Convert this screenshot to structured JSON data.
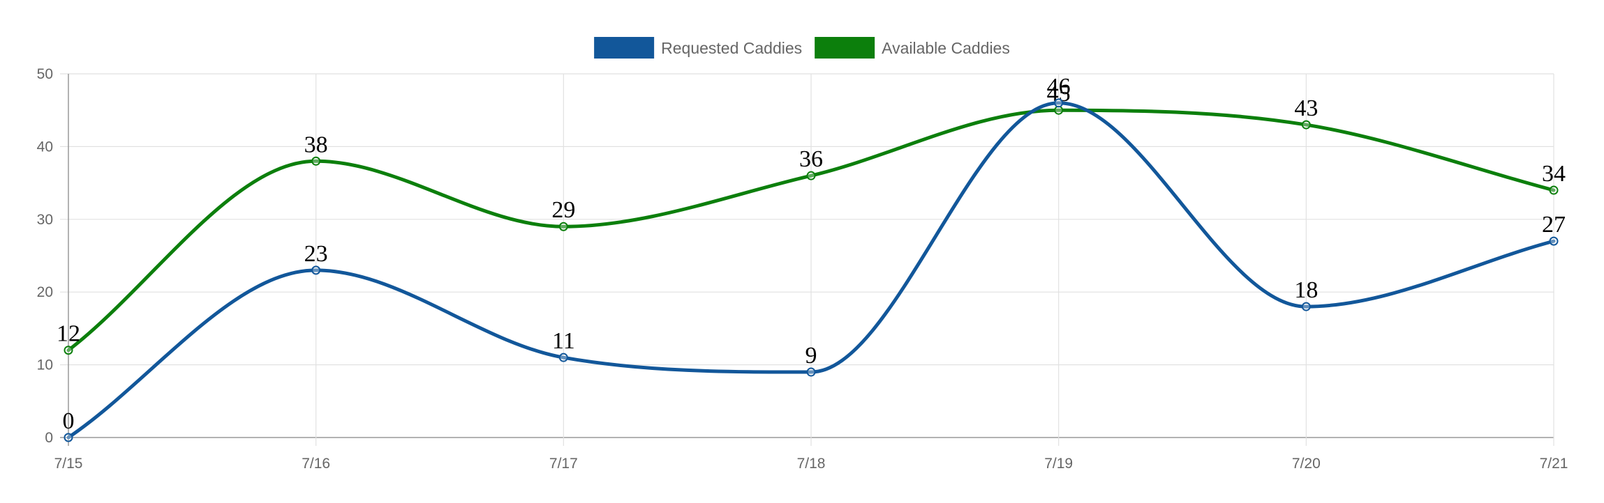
{
  "chart_data": {
    "type": "line",
    "categories": [
      "7/15",
      "7/16",
      "7/17",
      "7/18",
      "7/19",
      "7/20",
      "7/21"
    ],
    "series": [
      {
        "name": "Requested Caddies",
        "values": [
          0,
          23,
          11,
          9,
          46,
          18,
          27
        ],
        "color": "#12579a"
      },
      {
        "name": "Available Caddies",
        "values": [
          12,
          38,
          29,
          36,
          45,
          43,
          34
        ],
        "color": "#0c7f0c"
      }
    ],
    "ylim": [
      0,
      50
    ],
    "yticks": [
      0,
      10,
      20,
      30,
      40,
      50
    ],
    "grid": true,
    "legend": "top-center",
    "data_labels": true,
    "smooth": true
  }
}
